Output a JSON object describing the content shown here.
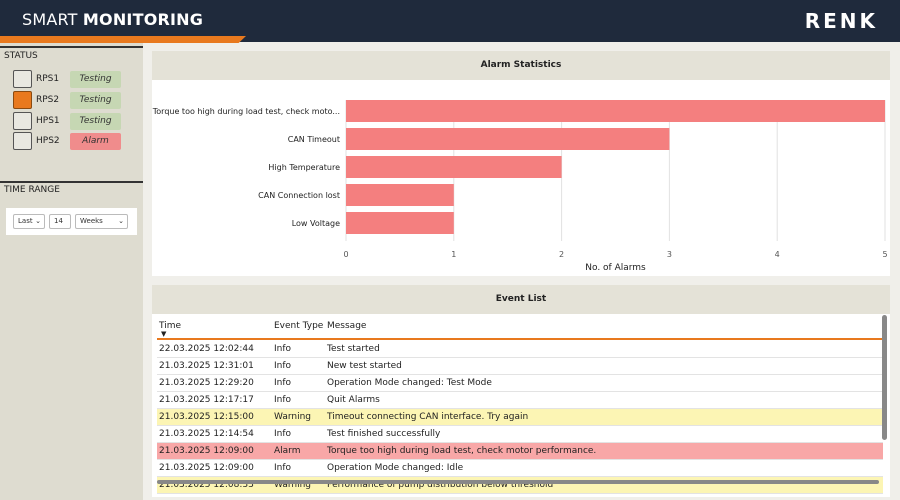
{
  "header": {
    "title_light": "SMART ",
    "title_bold": "MONITORING",
    "brand": "RENK"
  },
  "sidebar": {
    "status_title": "STATUS",
    "status_items": [
      {
        "name": "RPS1",
        "state": "Testing",
        "highlight": false
      },
      {
        "name": "RPS2",
        "state": "Testing",
        "highlight": true
      },
      {
        "name": "HPS1",
        "state": "Testing",
        "highlight": false
      },
      {
        "name": "HPS2",
        "state": "Alarm",
        "highlight": false
      }
    ],
    "time_range_title": "TIME RANGE",
    "time_range": {
      "mode": "Last",
      "count": "14",
      "unit": "Weeks"
    }
  },
  "alarm_card": {
    "title": "Alarm Statistics"
  },
  "chart_data": {
    "type": "bar",
    "orientation": "horizontal",
    "categories": [
      "Torque too high during load test, check moto...",
      "CAN Timeout",
      "High Temperature",
      "CAN Connection lost",
      "Low Voltage"
    ],
    "values": [
      5,
      3,
      2,
      1,
      1
    ],
    "xlabel": "No. of Alarms",
    "xlim": [
      0,
      5
    ],
    "xticks": [
      0,
      1,
      2,
      3,
      4,
      5
    ],
    "bar_color": "#f47f7f"
  },
  "event_card": {
    "title": "Event List",
    "columns": {
      "time": "Time",
      "type": "Event Type",
      "message": "Message"
    },
    "sort_icon": "sort-down-icon",
    "rows": [
      {
        "time": "22.03.2025 12:02:44",
        "type": "Info",
        "message": "Test started",
        "level": "info"
      },
      {
        "time": "21.03.2025 12:31:01",
        "type": "Info",
        "message": "New test started",
        "level": "info"
      },
      {
        "time": "21.03.2025 12:29:20",
        "type": "Info",
        "message": "Operation Mode changed: Test Mode",
        "level": "info"
      },
      {
        "time": "21.03.2025 12:17:17",
        "type": "Info",
        "message": "Quit Alarms",
        "level": "info"
      },
      {
        "time": "21.03.2025 12:15:00",
        "type": "Warning",
        "message": "Timeout connecting CAN interface. Try again",
        "level": "warning"
      },
      {
        "time": "21.03.2025 12:14:54",
        "type": "Info",
        "message": "Test finished successfully",
        "level": "info"
      },
      {
        "time": "21.03.2025 12:09:00",
        "type": "Alarm",
        "message": "Torque too high during load test, check motor performance.",
        "level": "alarm"
      },
      {
        "time": "21.03.2025 12:09:00",
        "type": "Info",
        "message": "Operation Mode changed: Idle",
        "level": "info"
      },
      {
        "time": "21.03.2025 12:08:33",
        "type": "Warning",
        "message": "Performance of pump distribution below threshold",
        "level": "warning"
      }
    ]
  }
}
